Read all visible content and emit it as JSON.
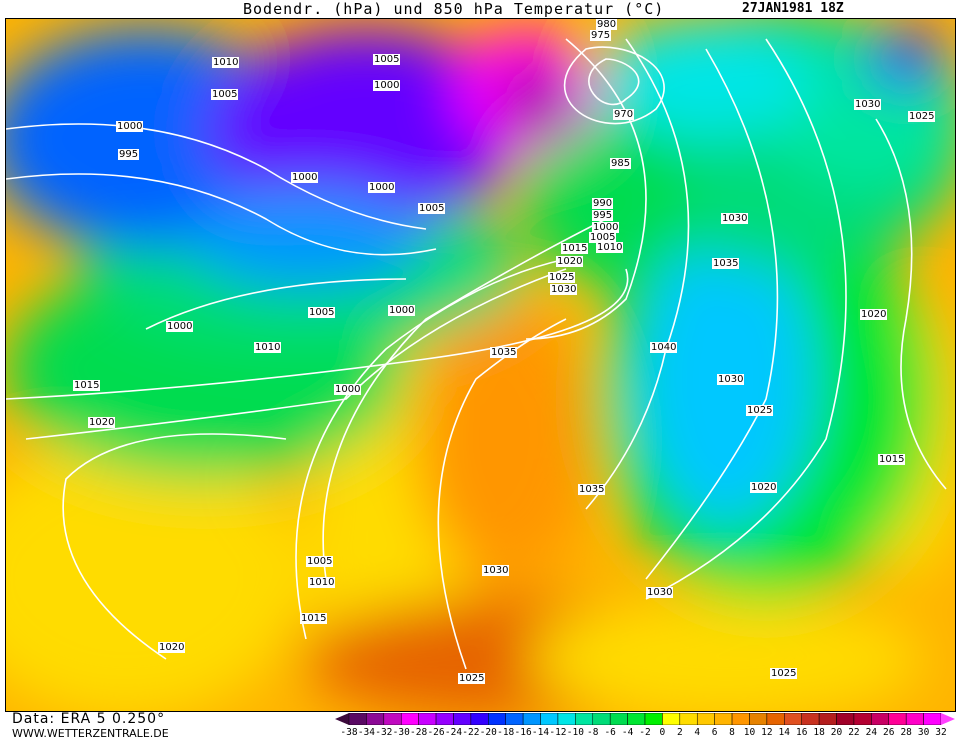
{
  "title": "Bodendr. (hPa) und 850 hPa Temperatur (°C)",
  "date": "27JAN1981 18Z",
  "footer": {
    "source": "Data: ERA 5 0.250°",
    "site": "WWW.WETTERZENTRALE.DE"
  },
  "legend": {
    "unit": "°C",
    "ticks": [
      "-38",
      "-34",
      "-32",
      "-30",
      "-28",
      "-26",
      "-24",
      "-22",
      "-20",
      "-18",
      "-16",
      "-14",
      "-12",
      "-10",
      "-8",
      "-6",
      "-4",
      "-2",
      "0",
      "2",
      "4",
      "6",
      "8",
      "10",
      "12",
      "14",
      "16",
      "18",
      "20",
      "22",
      "24",
      "26",
      "28",
      "30",
      "32"
    ],
    "colors": [
      "#3c0a3c",
      "#5a0a64",
      "#8c0a96",
      "#c00ac0",
      "#ff00ff",
      "#c800ff",
      "#9600ff",
      "#6400ff",
      "#3200ff",
      "#0032ff",
      "#0064ff",
      "#0096ff",
      "#00c8ff",
      "#00e6e6",
      "#00e6a0",
      "#00dc78",
      "#00dc50",
      "#00e632",
      "#00f000",
      "#ffff00",
      "#ffdc00",
      "#ffc800",
      "#ffb400",
      "#ff9600",
      "#e68200",
      "#e66400",
      "#e05020",
      "#c83220",
      "#b41e1e",
      "#a00028",
      "#b40032",
      "#c80064",
      "#ff0096",
      "#ff00c8",
      "#ff00ff",
      "#ff40ff"
    ]
  },
  "isobar_labels": [
    "1010",
    "1005",
    "1000",
    "995",
    "1005",
    "1000",
    "1000",
    "1000",
    "1005",
    "980",
    "975",
    "970",
    "985",
    "990",
    "995",
    "1000",
    "1005",
    "1010",
    "1015",
    "1020",
    "1025",
    "1030",
    "1030",
    "1025",
    "1030",
    "1035",
    "1040",
    "1030",
    "1025",
    "1020",
    "1015",
    "1020",
    "1035",
    "1035",
    "1030",
    "1030",
    "1025",
    "1025",
    "1020",
    "1015",
    "1010",
    "1005",
    "1000",
    "1000",
    "1005",
    "1010",
    "1015",
    "1020",
    "1000"
  ]
}
